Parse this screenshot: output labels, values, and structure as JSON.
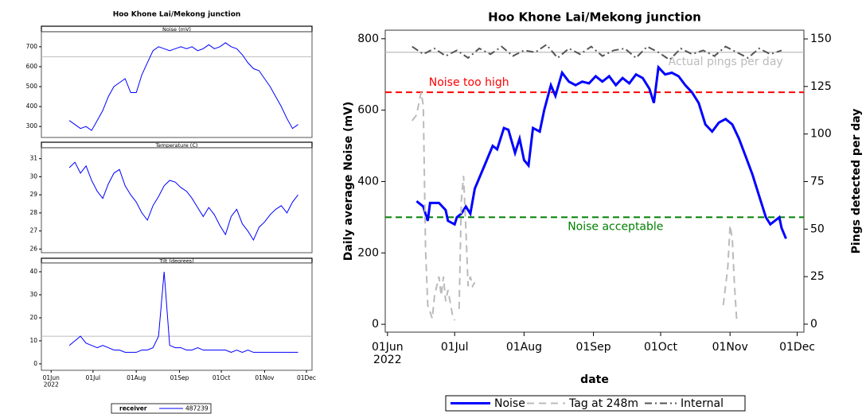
{
  "chart_data": [
    {
      "type": "panels",
      "title": "Hoo Khone Lai/Mekong junction",
      "color": "#0000ff",
      "x": [
        "2022-06-14",
        "2022-06-18",
        "2022-06-22",
        "2022-06-26",
        "2022-06-30",
        "2022-07-04",
        "2022-07-08",
        "2022-07-12",
        "2022-07-16",
        "2022-07-20",
        "2022-07-24",
        "2022-07-28",
        "2022-08-01",
        "2022-08-05",
        "2022-08-09",
        "2022-08-13",
        "2022-08-17",
        "2022-08-21",
        "2022-08-25",
        "2022-08-29",
        "2022-09-02",
        "2022-09-06",
        "2022-09-10",
        "2022-09-14",
        "2022-09-18",
        "2022-09-22",
        "2022-09-26",
        "2022-09-30",
        "2022-10-04",
        "2022-10-08",
        "2022-10-12",
        "2022-10-16",
        "2022-10-20",
        "2022-10-24",
        "2022-10-28",
        "2022-11-01",
        "2022-11-05",
        "2022-11-09",
        "2022-11-13",
        "2022-11-17",
        "2022-11-21",
        "2022-11-25"
      ],
      "xlim": [
        "2022-05-25",
        "2022-12-05"
      ],
      "xticks": [
        {
          "value": "2022-06-01",
          "label": "01Jun\n2022"
        },
        {
          "value": "2022-07-01",
          "label": "01Jul"
        },
        {
          "value": "2022-08-01",
          "label": "01Aug"
        },
        {
          "value": "2022-09-01",
          "label": "01Sep"
        },
        {
          "value": "2022-10-01",
          "label": "01Oct"
        },
        {
          "value": "2022-11-01",
          "label": "01Nov"
        },
        {
          "value": "2022-12-01",
          "label": "01Dec"
        }
      ],
      "panels": [
        {
          "label": "Noise (mV)",
          "ylim": [
            245,
            775
          ],
          "yticks": [
            300,
            400,
            500,
            600,
            700
          ],
          "reference_line": 650,
          "values": [
            330,
            310,
            290,
            300,
            280,
            330,
            380,
            450,
            500,
            520,
            540,
            470,
            470,
            560,
            620,
            680,
            700,
            690,
            680,
            690,
            700,
            690,
            700,
            680,
            690,
            710,
            690,
            700,
            720,
            700,
            690,
            660,
            620,
            590,
            580,
            540,
            500,
            450,
            400,
            340,
            290,
            310
          ]
        },
        {
          "label": "Temperature (C)",
          "ylim": [
            25.8,
            31.6
          ],
          "yticks": [
            26,
            27,
            28,
            29,
            30,
            31
          ],
          "values": [
            30.5,
            30.8,
            30.2,
            30.6,
            29.8,
            29.2,
            28.8,
            29.6,
            30.2,
            30.4,
            29.5,
            29.0,
            28.6,
            28.0,
            27.6,
            28.4,
            28.9,
            29.5,
            29.8,
            29.7,
            29.4,
            29.2,
            28.8,
            28.3,
            27.8,
            28.3,
            27.9,
            27.3,
            26.8,
            27.8,
            28.2,
            27.4,
            27.0,
            26.5,
            27.2,
            27.5,
            27.9,
            28.2,
            28.4,
            28.0,
            28.6,
            29.0
          ]
        },
        {
          "label": "Tilt (degrees)",
          "ylim": [
            -2.8,
            43.8
          ],
          "yticks": [
            0,
            10,
            20,
            30,
            40
          ],
          "reference_line": 12,
          "values": [
            8,
            10,
            12,
            9,
            8,
            7,
            8,
            7,
            6,
            6,
            5,
            5,
            5,
            6,
            6,
            7,
            12,
            40,
            8,
            7,
            7,
            6,
            6,
            7,
            6,
            6,
            6,
            6,
            6,
            5,
            6,
            5,
            6,
            5,
            5,
            5,
            5,
            5,
            5,
            5,
            5,
            5
          ]
        }
      ],
      "legend": {
        "title": "receiver",
        "entry": "487239"
      }
    },
    {
      "type": "line",
      "title": "Hoo Khone Lai/Mekong junction",
      "xlabel": "date",
      "ylabel": "Daily average Noise (mV)",
      "y2label": "Pings detected per day",
      "xlim": [
        "2022-05-31",
        "2022-12-04"
      ],
      "xticks": [
        {
          "value": "2022-06-01",
          "label": "01Jun\n2022"
        },
        {
          "value": "2022-07-01",
          "label": "01Jul"
        },
        {
          "value": "2022-08-01",
          "label": "01Aug"
        },
        {
          "value": "2022-09-01",
          "label": "01Sep"
        },
        {
          "value": "2022-10-01",
          "label": "01Oct"
        },
        {
          "value": "2022-11-01",
          "label": "01Nov"
        },
        {
          "value": "2022-12-01",
          "label": "01Dec"
        }
      ],
      "ylim": [
        -22,
        824
      ],
      "yticks": [
        0,
        200,
        400,
        600,
        800
      ],
      "y2lim": [
        -4.2,
        154.6
      ],
      "y2ticks": [
        0,
        25,
        50,
        75,
        100,
        125,
        150
      ],
      "reference_lines": [
        {
          "value": 650,
          "label": "Noise too high",
          "color": "#ff0000"
        },
        {
          "value": 300,
          "label": "Noise acceptable",
          "color": "#008000"
        },
        {
          "value": 143,
          "axis": "y2",
          "label": "Actual pings per day",
          "color": "#bbbbbb"
        }
      ],
      "series": [
        {
          "name": "Noise",
          "color": "#0000ff",
          "style": "solid",
          "x": [
            "2022-06-14",
            "2022-06-17",
            "2022-06-19",
            "2022-06-20",
            "2022-06-24",
            "2022-06-27",
            "2022-06-28",
            "2022-07-01",
            "2022-07-02",
            "2022-07-04",
            "2022-07-06",
            "2022-07-08",
            "2022-07-10",
            "2022-07-14",
            "2022-07-18",
            "2022-07-20",
            "2022-07-23",
            "2022-07-25",
            "2022-07-28",
            "2022-07-30",
            "2022-08-01",
            "2022-08-03",
            "2022-08-05",
            "2022-08-08",
            "2022-08-10",
            "2022-08-13",
            "2022-08-15",
            "2022-08-18",
            "2022-08-21",
            "2022-08-24",
            "2022-08-27",
            "2022-08-30",
            "2022-09-02",
            "2022-09-05",
            "2022-09-08",
            "2022-09-11",
            "2022-09-14",
            "2022-09-17",
            "2022-09-20",
            "2022-09-23",
            "2022-09-26",
            "2022-09-28",
            "2022-09-30",
            "2022-10-03",
            "2022-10-06",
            "2022-10-09",
            "2022-10-12",
            "2022-10-15",
            "2022-10-18",
            "2022-10-21",
            "2022-10-24",
            "2022-10-27",
            "2022-10-30",
            "2022-11-02",
            "2022-11-05",
            "2022-11-08",
            "2022-11-11",
            "2022-11-14",
            "2022-11-17",
            "2022-11-19",
            "2022-11-21",
            "2022-11-23",
            "2022-11-24",
            "2022-11-26"
          ],
          "values": [
            345,
            330,
            290,
            340,
            340,
            320,
            290,
            280,
            300,
            310,
            330,
            310,
            380,
            440,
            500,
            490,
            550,
            545,
            480,
            520,
            460,
            445,
            550,
            540,
            600,
            670,
            640,
            705,
            680,
            670,
            680,
            675,
            695,
            680,
            695,
            670,
            690,
            675,
            700,
            690,
            660,
            620,
            720,
            700,
            705,
            695,
            670,
            650,
            620,
            560,
            540,
            565,
            575,
            560,
            520,
            470,
            420,
            360,
            300,
            280,
            290,
            300,
            270,
            240
          ]
        },
        {
          "name": "Tag at 248m",
          "color": "#bbbbbb",
          "style": "dashed",
          "axis": "y2",
          "x": [
            "2022-06-12",
            "2022-06-14",
            "2022-06-16",
            "2022-06-17",
            "2022-06-18",
            "2022-06-19",
            "2022-06-21",
            "2022-06-22",
            "2022-06-24",
            "2022-06-25",
            "2022-06-26",
            "2022-06-27",
            "2022-06-28",
            "2022-06-30",
            "2022-07-01",
            "2022-07-02",
            "2022-07-03",
            "2022-07-04",
            "2022-07-05",
            "2022-07-06",
            "2022-07-07",
            "2022-07-08",
            "2022-07-09",
            "2022-07-10",
            "2022-10-15",
            "2022-10-29",
            "2022-10-31",
            "2022-11-01",
            "2022-11-02",
            "2022-11-03",
            "2022-11-04"
          ],
          "values": [
            107,
            110,
            122,
            115,
            40,
            10,
            3,
            15,
            25,
            15,
            25,
            12,
            18,
            5,
            2,
            null,
            8,
            65,
            78,
            50,
            20,
            25,
            20,
            22,
            null,
            10,
            30,
            52,
            45,
            20,
            2
          ]
        },
        {
          "name": "Internal",
          "color": "#555555",
          "style": "dashdot",
          "axis": "y2",
          "x": [
            "2022-06-12",
            "2022-06-17",
            "2022-06-22",
            "2022-06-27",
            "2022-07-02",
            "2022-07-07",
            "2022-07-12",
            "2022-07-17",
            "2022-07-22",
            "2022-07-27",
            "2022-08-01",
            "2022-08-06",
            "2022-08-11",
            "2022-08-16",
            "2022-08-21",
            "2022-08-26",
            "2022-08-31",
            "2022-09-05",
            "2022-09-10",
            "2022-09-15",
            "2022-09-20",
            "2022-09-25",
            "2022-09-30",
            "2022-10-05",
            "2022-10-10",
            "2022-10-15",
            "2022-10-20",
            "2022-10-25",
            "2022-10-30",
            "2022-11-04",
            "2022-11-09",
            "2022-11-14",
            "2022-11-19",
            "2022-11-24"
          ],
          "values": [
            146,
            142,
            145,
            141,
            144,
            140,
            145,
            142,
            146,
            141,
            144,
            143,
            147,
            140,
            145,
            142,
            146,
            141,
            144,
            145,
            140,
            146,
            143,
            139,
            145,
            142,
            144,
            141,
            146,
            143,
            140,
            145,
            142,
            144
          ]
        }
      ]
    }
  ]
}
